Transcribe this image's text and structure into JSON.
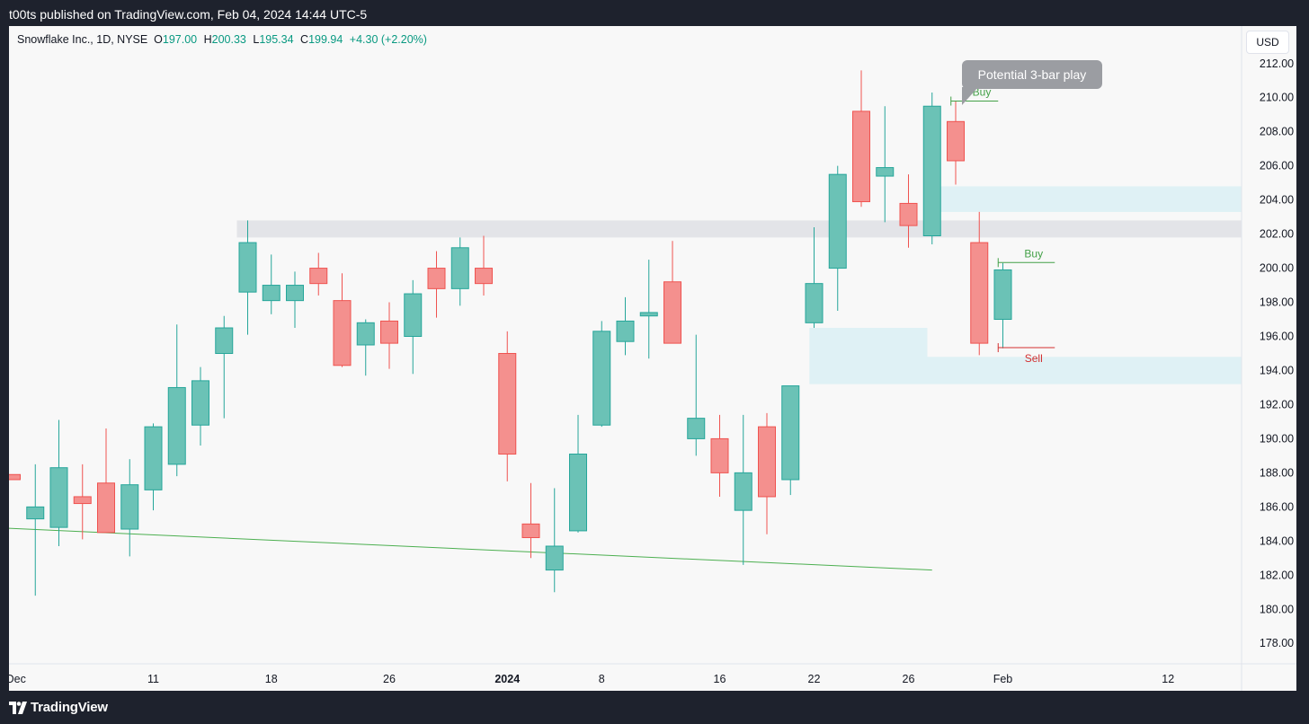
{
  "header": {
    "published_text": "t00ts published on TradingView.com, Feb 04, 2024 14:44 UTC-5"
  },
  "footer": {
    "brand": "TradingView"
  },
  "legend": {
    "symbol_text": "Snowflake Inc., 1D, NYSE",
    "open_label": "O",
    "open": "197.00",
    "high_label": "H",
    "high": "200.33",
    "low_label": "L",
    "low": "195.34",
    "close_label": "C",
    "close": "199.94",
    "change": "+4.30 (+2.20%)"
  },
  "currency": "USD",
  "callout_text": "Potential 3-bar play",
  "colors": {
    "up": "#6bc2b6",
    "up_border": "#26a69a",
    "down": "#f4908e",
    "down_border": "#ef5350",
    "zone": "#dff1f5",
    "band": "#e3e4e8",
    "trendline": "#4caf50",
    "buy": "#43a047",
    "sell": "#d32f2f",
    "axis_text": "#131722"
  },
  "chart_data": {
    "type": "candlestick",
    "title": "Snowflake Inc., 1D, NYSE",
    "ylim": [
      176.8,
      214.2
    ],
    "y_ticks": [
      "178.00",
      "180.00",
      "182.00",
      "184.00",
      "186.00",
      "188.00",
      "190.00",
      "192.00",
      "194.00",
      "196.00",
      "198.00",
      "200.00",
      "202.00",
      "204.00",
      "206.00",
      "208.00",
      "210.00",
      "212.00"
    ],
    "x_ticks": [
      {
        "label": "Dec",
        "index": -0.2,
        "bold": false
      },
      {
        "label": "11",
        "index": 6,
        "bold": false
      },
      {
        "label": "18",
        "index": 11,
        "bold": false
      },
      {
        "label": "26",
        "index": 16,
        "bold": false
      },
      {
        "label": "2024",
        "index": 21,
        "bold": true
      },
      {
        "label": "8",
        "index": 25,
        "bold": false
      },
      {
        "label": "16",
        "index": 30,
        "bold": false
      },
      {
        "label": "22",
        "index": 34,
        "bold": false
      },
      {
        "label": "26",
        "index": 38,
        "bold": false
      },
      {
        "label": "Feb",
        "index": 42,
        "bold": false
      },
      {
        "label": "12",
        "index": 49,
        "bold": false
      }
    ],
    "candles": [
      {
        "o": 187.9,
        "h": 187.9,
        "l": 187.6,
        "c": 187.6
      },
      {
        "o": 185.3,
        "h": 188.5,
        "l": 180.8,
        "c": 186.0
      },
      {
        "o": 184.8,
        "h": 191.1,
        "l": 183.7,
        "c": 188.3
      },
      {
        "o": 186.6,
        "h": 188.5,
        "l": 184.1,
        "c": 186.2
      },
      {
        "o": 187.4,
        "h": 190.6,
        "l": 184.5,
        "c": 184.5
      },
      {
        "o": 184.7,
        "h": 188.8,
        "l": 183.1,
        "c": 187.3
      },
      {
        "o": 187.0,
        "h": 190.9,
        "l": 185.8,
        "c": 190.7
      },
      {
        "o": 188.5,
        "h": 196.7,
        "l": 187.8,
        "c": 193.0
      },
      {
        "o": 190.8,
        "h": 194.2,
        "l": 189.6,
        "c": 193.4
      },
      {
        "o": 195.0,
        "h": 197.2,
        "l": 191.2,
        "c": 196.5
      },
      {
        "o": 198.6,
        "h": 202.8,
        "l": 196.1,
        "c": 201.5
      },
      {
        "o": 198.1,
        "h": 200.8,
        "l": 197.3,
        "c": 199.0
      },
      {
        "o": 198.1,
        "h": 199.8,
        "l": 196.5,
        "c": 199.0
      },
      {
        "o": 200.0,
        "h": 200.9,
        "l": 198.4,
        "c": 199.1
      },
      {
        "o": 198.1,
        "h": 199.7,
        "l": 194.2,
        "c": 194.3
      },
      {
        "o": 195.5,
        "h": 197.0,
        "l": 193.7,
        "c": 196.8
      },
      {
        "o": 196.9,
        "h": 198.0,
        "l": 194.1,
        "c": 195.6
      },
      {
        "o": 196.0,
        "h": 199.3,
        "l": 193.8,
        "c": 198.5
      },
      {
        "o": 200.0,
        "h": 201.0,
        "l": 197.1,
        "c": 198.8
      },
      {
        "o": 198.8,
        "h": 201.8,
        "l": 197.8,
        "c": 201.2
      },
      {
        "o": 200.0,
        "h": 201.9,
        "l": 198.4,
        "c": 199.1
      },
      {
        "o": 195.0,
        "h": 196.3,
        "l": 187.5,
        "c": 189.1
      },
      {
        "o": 185.0,
        "h": 187.4,
        "l": 183.0,
        "c": 184.2
      },
      {
        "o": 182.3,
        "h": 187.1,
        "l": 181.0,
        "c": 183.7
      },
      {
        "o": 184.6,
        "h": 191.4,
        "l": 184.5,
        "c": 189.1
      },
      {
        "o": 190.8,
        "h": 196.9,
        "l": 190.7,
        "c": 196.3
      },
      {
        "o": 195.7,
        "h": 198.3,
        "l": 194.9,
        "c": 196.9
      },
      {
        "o": 197.2,
        "h": 200.5,
        "l": 194.7,
        "c": 197.4
      },
      {
        "o": 199.2,
        "h": 201.6,
        "l": 195.6,
        "c": 195.6
      },
      {
        "o": 190.0,
        "h": 196.1,
        "l": 189.0,
        "c": 191.2
      },
      {
        "o": 190.0,
        "h": 191.4,
        "l": 186.6,
        "c": 188.0
      },
      {
        "o": 185.8,
        "h": 191.4,
        "l": 182.6,
        "c": 188.0
      },
      {
        "o": 190.7,
        "h": 191.5,
        "l": 184.4,
        "c": 186.6
      },
      {
        "o": 187.6,
        "h": 193.1,
        "l": 186.7,
        "c": 193.1
      },
      {
        "o": 196.8,
        "h": 202.4,
        "l": 196.5,
        "c": 199.1
      },
      {
        "o": 200.0,
        "h": 206.0,
        "l": 197.5,
        "c": 205.5
      },
      {
        "o": 209.2,
        "h": 211.6,
        "l": 203.6,
        "c": 203.9
      },
      {
        "o": 205.4,
        "h": 209.5,
        "l": 202.7,
        "c": 205.9
      },
      {
        "o": 203.8,
        "h": 205.5,
        "l": 201.2,
        "c": 202.5
      },
      {
        "o": 201.9,
        "h": 210.3,
        "l": 201.4,
        "c": 209.5
      },
      {
        "o": 208.6,
        "h": 209.8,
        "l": 204.9,
        "c": 206.3
      },
      {
        "o": 201.5,
        "h": 203.3,
        "l": 194.9,
        "c": 195.6
      },
      {
        "o": 197.0,
        "h": 200.3,
        "l": 195.3,
        "c": 199.9
      }
    ]
  },
  "annotations": {
    "resistance_band": {
      "from_index": 10,
      "to": "right",
      "y1": 201.8,
      "y2": 202.8
    },
    "zones": [
      {
        "from_index": 38.8,
        "to": "right",
        "y1": 203.3,
        "y2": 204.8
      },
      {
        "from_index": 33.8,
        "to_index": 38.8,
        "y1": 193.2,
        "y2": 196.5
      },
      {
        "from_index": 38.8,
        "to": "right",
        "y1": 193.2,
        "y2": 194.8
      }
    ],
    "trendline": {
      "x1_index": -1,
      "y1": 184.8,
      "x2_index": 39.0,
      "y2": 182.3
    },
    "levels": [
      {
        "label": "Buy",
        "kind": "buy",
        "value": 209.8,
        "from_index": 39.8,
        "to_index": 41.8,
        "label_pos": "above"
      },
      {
        "label": "Buy",
        "kind": "buy",
        "value": 200.33,
        "from_index": 41.8,
        "to_index": 44.2,
        "label_pos": "above"
      },
      {
        "label": "Sell",
        "kind": "sell",
        "value": 195.34,
        "from_index": 41.8,
        "to_index": 44.2,
        "label_pos": "below"
      }
    ]
  }
}
